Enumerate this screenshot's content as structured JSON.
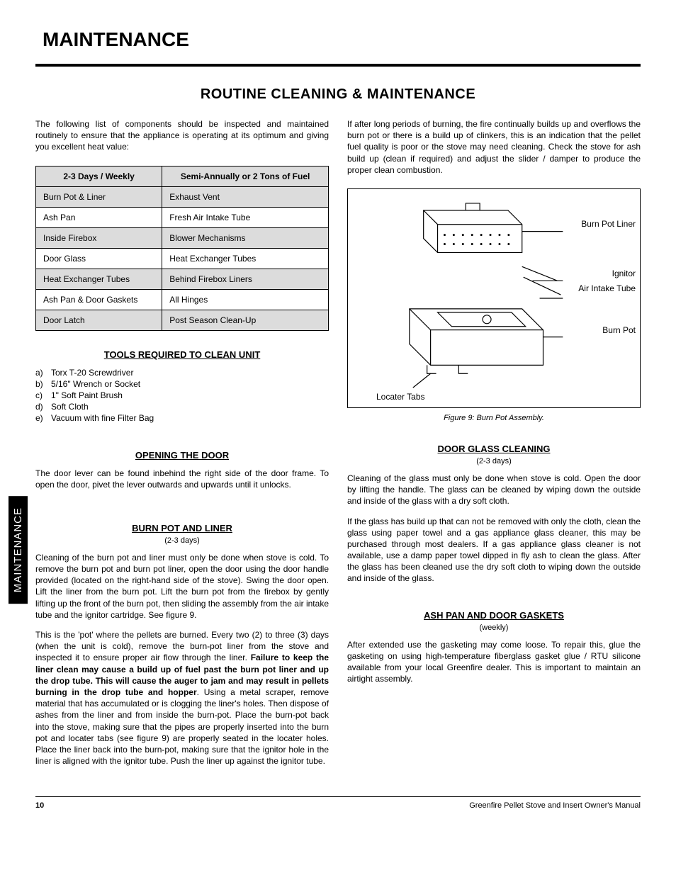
{
  "page": {
    "title": "MAINTENANCE",
    "section_title": "ROUTINE CLEANING & MAINTENANCE",
    "side_tab": "MAINTENANCE",
    "page_number": "10",
    "footer_text": "Greenfire Pellet Stove and Insert Owner's Manual"
  },
  "intro_left": "The following list of components should be inspected and maintained routinely to ensure that the appliance is operating at its optimum and giving you excellent heat value:",
  "intro_right": "If after long periods of burning, the fire continually builds up and overflows the burn pot or there is a build up of clinkers, this is an indication that the pellet fuel quality is poor or the stove may need cleaning.  Check the stove for ash build up (clean if required) and adjust the slider / damper to produce the proper clean combustion.",
  "schedule": {
    "headers": [
      "2-3 Days / Weekly",
      "Semi-Annually or 2 Tons of Fuel"
    ],
    "rows": [
      {
        "shaded": true,
        "cells": [
          "Burn Pot & Liner",
          "Exhaust Vent"
        ]
      },
      {
        "shaded": false,
        "cells": [
          "Ash Pan",
          "Fresh Air Intake Tube"
        ]
      },
      {
        "shaded": true,
        "cells": [
          "Inside Firebox",
          "Blower Mechanisms"
        ]
      },
      {
        "shaded": false,
        "cells": [
          "Door Glass",
          "Heat Exchanger Tubes"
        ]
      },
      {
        "shaded": true,
        "cells": [
          "Heat Exchanger Tubes",
          "Behind Firebox Liners"
        ]
      },
      {
        "shaded": false,
        "cells": [
          "Ash Pan & Door Gaskets",
          "All Hinges"
        ]
      },
      {
        "shaded": true,
        "cells": [
          "Door Latch",
          "Post Season Clean-Up"
        ]
      }
    ]
  },
  "tools": {
    "heading": "TOOLS REQUIRED TO CLEAN UNIT",
    "items": [
      {
        "marker": "a)",
        "text": "Torx T-20 Screwdriver"
      },
      {
        "marker": "b)",
        "text": "5/16\" Wrench or Socket"
      },
      {
        "marker": "c)",
        "text": "1\" Soft Paint Brush"
      },
      {
        "marker": "d)",
        "text": "Soft Cloth"
      },
      {
        "marker": "e)",
        "text": "Vacuum with fine Filter Bag"
      }
    ]
  },
  "opening_door": {
    "heading": "OPENING THE DOOR",
    "body": "The door lever can be found inbehind the right side of the door frame. To open the door, pivet the lever outwards and upwards until it unlocks."
  },
  "burn_pot": {
    "heading": "BURN POT AND LINER",
    "freq": "(2-3 days)",
    "p1": "Cleaning of the burn pot and liner must only be done when stove is cold. To remove the burn pot and burn pot liner, open the door using the door handle provided (located on the right-hand side of the stove). Swing the door open. Lift the liner from the burn pot. Lift the burn pot from the firebox by gently lifting up the front of the burn pot, then sliding the assembly from the air intake tube and the ignitor cartridge.  See figure 9.",
    "p2_a": "This is the 'pot' where the pellets are burned. Every two (2) to three (3) days (when the unit is cold), remove the burn-pot liner from the stove and inspected it to ensure proper air flow through the liner. ",
    "p2_bold": "Failure to keep the liner clean may cause a build up of fuel past the burn pot liner and up the drop tube.  This will cause the auger to jam and may result in pellets burning in the drop tube and hopper",
    "p2_b": ". Using a metal scraper, remove material that has accumulated or is clogging the liner's holes. Then dispose of ashes from the liner and from inside the burn-pot. Place the burn-pot back into the stove, making sure that the pipes are properly inserted into the burn pot and locater tabs (see figure 9) are properly seated in the locater holes. Place the liner back into the burn-pot, making sure that the ignitor hole in the liner is aligned with the ignitor tube. Push the liner up against the ignitor tube."
  },
  "figure": {
    "caption": "Figure 9: Burn Pot Assembly.",
    "labels": {
      "liner": "Burn Pot Liner",
      "ignitor": "Ignitor",
      "air_intake": "Air Intake Tube",
      "burn_pot": "Burn Pot",
      "locater": "Locater Tabs"
    }
  },
  "door_glass": {
    "heading": "DOOR GLASS CLEANING",
    "freq": "(2-3 days)",
    "p1": "Cleaning of the glass must only be done when stove is cold. Open the door by lifting the handle. The glass can be  cleaned by wiping down the outside and inside of the glass with a dry soft cloth.",
    "p2": "If the glass has build up that can not be removed with only the cloth, clean the glass using paper towel and a gas appliance glass cleaner, this may be purchased through most dealers. If a gas appliance glass cleaner is not available, use a damp paper towel dipped in fly ash to clean the glass. After the glass has been cleaned use the dry soft cloth to wiping down the outside and inside of the glass."
  },
  "gaskets": {
    "heading": "ASH PAN AND DOOR GASKETS",
    "freq": "(weekly)",
    "p1": "After extended use the gasketing may come loose. To repair this, glue the gasketing on using high-temperature fiberglass gasket glue / RTU silicone available from your local Greenfire dealer. This is important to maintain an airtight assembly."
  }
}
